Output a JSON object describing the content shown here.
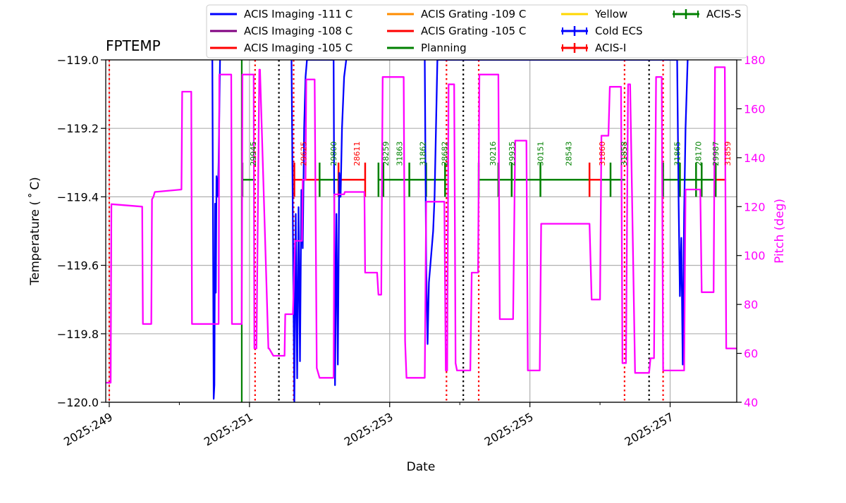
{
  "chart_data": {
    "type": "line",
    "title": "FPTEMP",
    "xlabel": "Date",
    "ylabel": "Temperature ($^\\circ$C)",
    "ylabel_display": "Temperature ( ˚ C)",
    "y2label": "Pitch (deg)",
    "xlim": [
      248.95,
      257.95
    ],
    "ylim": [
      -120.0,
      -119.0
    ],
    "y2lim": [
      40,
      180
    ],
    "x_ticks": [
      249,
      251,
      253,
      255,
      257
    ],
    "x_tick_labels": [
      "2025:249",
      "2025:251",
      "2025:253",
      "2025:255",
      "2025:257"
    ],
    "y_ticks": [
      -120.0,
      -119.8,
      -119.6,
      -119.4,
      -119.2,
      -119.0
    ],
    "y_tick_labels": [
      "−120.0",
      "−119.8",
      "−119.6",
      "−119.4",
      "−119.2",
      "−119.0"
    ],
    "y2_ticks": [
      40,
      60,
      80,
      100,
      120,
      140,
      160,
      180
    ],
    "y2_tick_labels": [
      "40",
      "60",
      "80",
      "100",
      "120",
      "140",
      "160",
      "180"
    ],
    "grid": true,
    "legend": {
      "placement": "top",
      "entries": [
        {
          "label": "ACIS Imaging -111 C",
          "color": "#0000ff",
          "marker": "line"
        },
        {
          "label": "ACIS Imaging -108 C",
          "color": "#800080",
          "marker": "line"
        },
        {
          "label": "ACIS Imaging -105 C",
          "color": "#ff0000",
          "marker": "line"
        },
        {
          "label": "ACIS Grating -109 C",
          "color": "#ff8c00",
          "marker": "line"
        },
        {
          "label": "ACIS Grating -105 C",
          "color": "#ff0000",
          "marker": "line"
        },
        {
          "label": "Planning",
          "color": "#008000",
          "marker": "line"
        },
        {
          "label": "Yellow",
          "color": "#ffd700",
          "marker": "line"
        },
        {
          "label": "Cold ECS",
          "color": "#0000ff",
          "marker": "cross"
        },
        {
          "label": "ACIS-I",
          "color": "#ff0000",
          "marker": "cross"
        },
        {
          "label": "ACIS-S",
          "color": "#008000",
          "marker": "cross"
        }
      ]
    },
    "series": [
      {
        "name": "FPTEMP",
        "axis": "left",
        "color": "#0000ff",
        "x": [
          250.47,
          250.48,
          250.49,
          250.5,
          250.51,
          250.52,
          250.53,
          250.55,
          250.56,
          250.57,
          250.58,
          250.6,
          250.62,
          250.64,
          251.6,
          251.62,
          251.64,
          251.66,
          251.68,
          251.7,
          251.72,
          251.74,
          251.76,
          251.78,
          251.8,
          251.82,
          252.2,
          252.22,
          252.24,
          252.26,
          252.28,
          252.3,
          252.32,
          252.35,
          252.38,
          252.41,
          253.5,
          253.52,
          253.54,
          253.56,
          253.58,
          253.6,
          253.62,
          253.64,
          253.66,
          253.68,
          257.1,
          257.12,
          257.14,
          257.16,
          257.18,
          257.2,
          257.22,
          257.25
        ],
        "y": [
          -119.0,
          -119.5,
          -119.99,
          -119.95,
          -119.42,
          -119.68,
          -119.34,
          -119.4,
          -119.3,
          -119.15,
          -119.0,
          null,
          null,
          null,
          -119.0,
          -119.5,
          -120.0,
          -119.45,
          -119.93,
          -119.43,
          -119.88,
          -119.38,
          -119.55,
          -119.2,
          -119.05,
          -119.0,
          -119.0,
          -119.95,
          -119.45,
          -119.89,
          -119.33,
          -119.4,
          -119.2,
          -119.05,
          -119.0,
          null,
          -119.0,
          -119.6,
          -119.83,
          -119.65,
          -119.6,
          -119.55,
          -119.5,
          -119.4,
          -119.2,
          -119.0,
          -119.0,
          -119.4,
          -119.69,
          -119.52,
          -119.89,
          -119.45,
          -119.2,
          -119.0
        ]
      },
      {
        "name": "Pitch",
        "axis": "right",
        "color": "#ff00ff",
        "x": [
          248.95,
          249.02,
          249.03,
          249.47,
          249.48,
          249.6,
          249.61,
          249.63,
          249.65,
          250.03,
          250.04,
          250.17,
          250.18,
          250.48,
          250.49,
          250.56,
          250.57,
          250.74,
          250.75,
          250.89,
          250.9,
          251.06,
          251.07,
          251.1,
          251.14,
          251.15,
          251.27,
          251.28,
          251.34,
          251.35,
          251.5,
          251.51,
          251.62,
          251.65,
          251.75,
          251.76,
          251.8,
          251.81,
          251.93,
          251.96,
          252.0,
          252.2,
          252.21,
          252.35,
          252.36,
          252.64,
          252.65,
          252.82,
          252.84,
          252.88,
          252.9,
          253.2,
          253.22,
          253.24,
          253.26,
          253.5,
          253.52,
          253.78,
          253.8,
          253.82,
          253.84,
          253.92,
          253.94,
          253.96,
          254.0,
          254.15,
          254.17,
          254.26,
          254.28,
          254.55,
          254.57,
          254.76,
          254.79,
          254.95,
          254.97,
          255.14,
          255.16,
          255.85,
          255.88,
          256.0,
          256.02,
          256.12,
          256.14,
          256.3,
          256.32,
          256.37,
          256.4,
          256.43,
          256.5,
          256.55,
          256.7,
          256.72,
          256.77,
          256.8,
          256.88,
          256.9,
          257.2,
          257.22,
          257.43,
          257.45,
          257.62,
          257.64,
          257.78,
          257.8,
          257.95
        ],
        "y": [
          48,
          48,
          121,
          120,
          72,
          72,
          123,
          124,
          126,
          127,
          167,
          167,
          72,
          72,
          72,
          72,
          174,
          174,
          72,
          72,
          174,
          174,
          62,
          62,
          176,
          176,
          62,
          62,
          59,
          59,
          59,
          76,
          76,
          106,
          106,
          131,
          131,
          172,
          172,
          54,
          50,
          50,
          125,
          125,
          126,
          126,
          93,
          93,
          84,
          84,
          173,
          173,
          65,
          50,
          50,
          50,
          122,
          122,
          53,
          53,
          170,
          170,
          56,
          53,
          53,
          53,
          93,
          93,
          174,
          174,
          74,
          74,
          147,
          147,
          53,
          53,
          113,
          113,
          82,
          82,
          149,
          149,
          169,
          169,
          56,
          56,
          170,
          170,
          52,
          52,
          52,
          58,
          58,
          173,
          173,
          53,
          53,
          127,
          127,
          85,
          85,
          177,
          177,
          62,
          62
        ]
      }
    ],
    "vlines": [
      {
        "x": 249.0,
        "color": "#ff0000",
        "style": "dotted"
      },
      {
        "x": 251.08,
        "color": "#ff0000",
        "style": "dotted"
      },
      {
        "x": 251.42,
        "color": "#000000",
        "style": "dotted"
      },
      {
        "x": 251.63,
        "color": "#ff0000",
        "style": "dotted"
      },
      {
        "x": 253.81,
        "color": "#ff0000",
        "style": "dotted"
      },
      {
        "x": 254.05,
        "color": "#000000",
        "style": "dotted"
      },
      {
        "x": 254.27,
        "color": "#ff0000",
        "style": "dotted"
      },
      {
        "x": 256.35,
        "color": "#ff0000",
        "style": "dotted"
      },
      {
        "x": 256.7,
        "color": "#000000",
        "style": "dotted"
      },
      {
        "x": 256.9,
        "color": "#ff0000",
        "style": "dotted"
      },
      {
        "x": 250.89,
        "color": "#008000",
        "style": "solid"
      }
    ],
    "intervals": [
      {
        "x0": 250.89,
        "x1": 251.08,
        "color": "#008000"
      },
      {
        "x0": 251.63,
        "x1": 252.0,
        "color": "#ff0000"
      },
      {
        "x0": 252.0,
        "x1": 252.27,
        "color": "#008000"
      },
      {
        "x0": 252.27,
        "x1": 252.65,
        "color": "#ff0000"
      },
      {
        "x0": 252.83,
        "x1": 253.79,
        "color": "#008000"
      },
      {
        "x0": 254.27,
        "x1": 255.85,
        "color": "#008000"
      },
      {
        "x0": 255.85,
        "x1": 256.02,
        "color": "#ff0000"
      },
      {
        "x0": 256.02,
        "x1": 256.35,
        "color": "#008000"
      },
      {
        "x0": 256.9,
        "x1": 257.65,
        "color": "#008000"
      },
      {
        "x0": 257.65,
        "x1": 257.8,
        "color": "#ff0000"
      }
    ],
    "interval_ticks": [
      {
        "x": 250.9,
        "color": "#008000"
      },
      {
        "x": 251.64,
        "color": "#ff0000"
      },
      {
        "x": 252.0,
        "color": "#008000"
      },
      {
        "x": 252.27,
        "color": "#ff0000"
      },
      {
        "x": 252.65,
        "color": "#ff0000"
      },
      {
        "x": 252.84,
        "color": "#008000"
      },
      {
        "x": 252.91,
        "color": "#008000"
      },
      {
        "x": 253.28,
        "color": "#008000"
      },
      {
        "x": 253.52,
        "color": "#008000"
      },
      {
        "x": 253.79,
        "color": "#008000"
      },
      {
        "x": 254.27,
        "color": "#008000"
      },
      {
        "x": 254.55,
        "color": "#008000"
      },
      {
        "x": 254.74,
        "color": "#008000"
      },
      {
        "x": 255.15,
        "color": "#008000"
      },
      {
        "x": 255.85,
        "color": "#ff0000"
      },
      {
        "x": 256.15,
        "color": "#008000"
      },
      {
        "x": 256.9,
        "color": "#008000"
      },
      {
        "x": 257.14,
        "color": "#008000"
      },
      {
        "x": 257.37,
        "color": "#008000"
      },
      {
        "x": 257.45,
        "color": "#008000"
      },
      {
        "x": 257.65,
        "color": "#008000"
      }
    ],
    "obsids": [
      {
        "id": "29945",
        "x": 251.05,
        "color": "#008000"
      },
      {
        "id": "29625",
        "x": 251.77,
        "color": "#ff0000"
      },
      {
        "id": "29800",
        "x": 252.2,
        "color": "#008000"
      },
      {
        "id": "28611",
        "x": 252.53,
        "color": "#ff0000"
      },
      {
        "id": "28259",
        "x": 252.94,
        "color": "#008000"
      },
      {
        "id": "31863",
        "x": 253.14,
        "color": "#008000"
      },
      {
        "id": "31862",
        "x": 253.47,
        "color": "#008000"
      },
      {
        "id": "28682",
        "x": 253.78,
        "color": "#008000"
      },
      {
        "id": "30216",
        "x": 254.47,
        "color": "#008000"
      },
      {
        "id": "29935",
        "x": 254.74,
        "color": "#008000"
      },
      {
        "id": "30151",
        "x": 255.15,
        "color": "#008000"
      },
      {
        "id": "28543",
        "x": 255.55,
        "color": "#008000"
      },
      {
        "id": "31860",
        "x": 256.03,
        "color": "#ff0000"
      },
      {
        "id": "31858",
        "x": 256.34,
        "color": "#008000"
      },
      {
        "id": "31865",
        "x": 257.1,
        "color": "#008000"
      },
      {
        "id": "28170",
        "x": 257.4,
        "color": "#008000"
      },
      {
        "id": "29987",
        "x": 257.65,
        "color": "#008000"
      },
      {
        "id": "31859",
        "x": 257.82,
        "color": "#ff0000"
      }
    ]
  }
}
